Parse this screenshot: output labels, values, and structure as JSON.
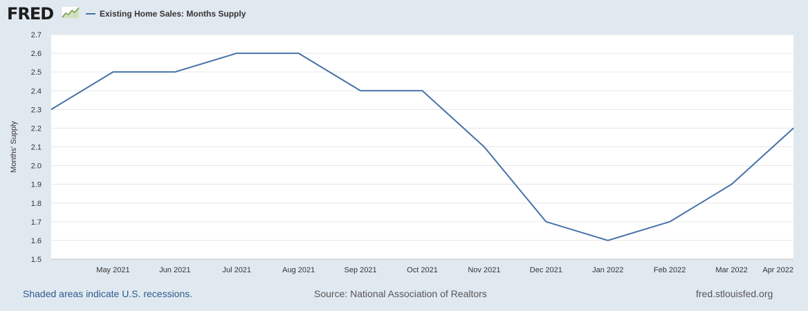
{
  "header": {
    "logo_text": "FRED",
    "logo_icon": "trend-line-icon",
    "legend_label": "Existing Home Sales: Months Supply"
  },
  "chart_data": {
    "type": "line",
    "title": "",
    "ylabel": "Months' Supply",
    "xlabel": "",
    "ylim": [
      1.5,
      2.7
    ],
    "yticks": [
      "1.5",
      "1.6",
      "1.7",
      "1.8",
      "1.9",
      "2.0",
      "2.1",
      "2.2",
      "2.3",
      "2.4",
      "2.5",
      "2.6",
      "2.7"
    ],
    "x": [
      "Apr 2021",
      "May 2021",
      "Jun 2021",
      "Jul 2021",
      "Aug 2021",
      "Sep 2021",
      "Oct 2021",
      "Nov 2021",
      "Dec 2021",
      "Jan 2022",
      "Feb 2022",
      "Mar 2022",
      "Apr 2022"
    ],
    "xtick_labels": [
      "",
      "May 2021",
      "Jun 2021",
      "Jul 2021",
      "Aug 2021",
      "Sep 2021",
      "Oct 2021",
      "Nov 2021",
      "Dec 2021",
      "Jan 2022",
      "Feb 2022",
      "Mar 2022",
      "Apr 2022"
    ],
    "series": [
      {
        "name": "Existing Home Sales: Months Supply",
        "values": [
          2.3,
          2.5,
          2.5,
          2.6,
          2.6,
          2.4,
          2.4,
          2.1,
          1.7,
          1.6,
          1.7,
          1.9,
          2.2
        ]
      }
    ],
    "grid": true,
    "line_color": "#4572a7"
  },
  "footer": {
    "recessions_note": "Shaded areas indicate U.S. recessions.",
    "source": "Source: National Association of Realtors",
    "site": "fred.stlouisfed.org"
  }
}
